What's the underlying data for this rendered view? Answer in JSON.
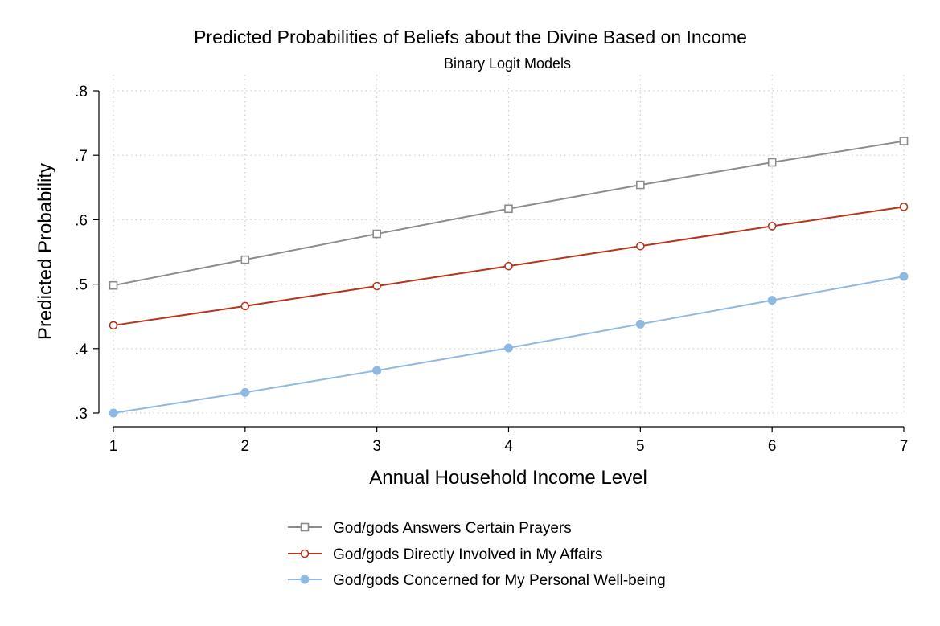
{
  "chart_data": {
    "type": "line",
    "title": "Predicted Probabilities of Beliefs about the Divine Based on Income",
    "subtitle": "Binary Logit Models",
    "xlabel": "Annual Household Income Level",
    "ylabel": "Predicted Probability",
    "x": [
      1,
      2,
      3,
      4,
      5,
      6,
      7
    ],
    "x_tick_labels": [
      "1",
      "2",
      "3",
      "4",
      "5",
      "6",
      "7"
    ],
    "xlim": [
      1,
      7
    ],
    "ylim": [
      0.3,
      0.8
    ],
    "y_ticks": [
      0.3,
      0.4,
      0.5,
      0.6,
      0.7,
      0.8
    ],
    "y_tick_labels": [
      ".3",
      ".4",
      ".5",
      ".6",
      ".7",
      ".8"
    ],
    "grid": true,
    "legend_position": "bottom",
    "series": [
      {
        "name": "God/gods Answers Certain Prayers",
        "values": [
          0.498,
          0.538,
          0.578,
          0.617,
          0.654,
          0.689,
          0.722
        ],
        "color": "#8c8c8c",
        "marker": "hollow-square"
      },
      {
        "name": "God/gods Directly Involved in My Affairs",
        "values": [
          0.436,
          0.466,
          0.497,
          0.528,
          0.559,
          0.59,
          0.62
        ],
        "color": "#b5341c",
        "marker": "hollow-circle"
      },
      {
        "name": "God/gods Concerned for My Personal Well-being",
        "values": [
          0.3,
          0.332,
          0.366,
          0.401,
          0.438,
          0.475,
          0.512
        ],
        "color": "#8fb8e3",
        "marker": "filled-circle"
      }
    ]
  }
}
